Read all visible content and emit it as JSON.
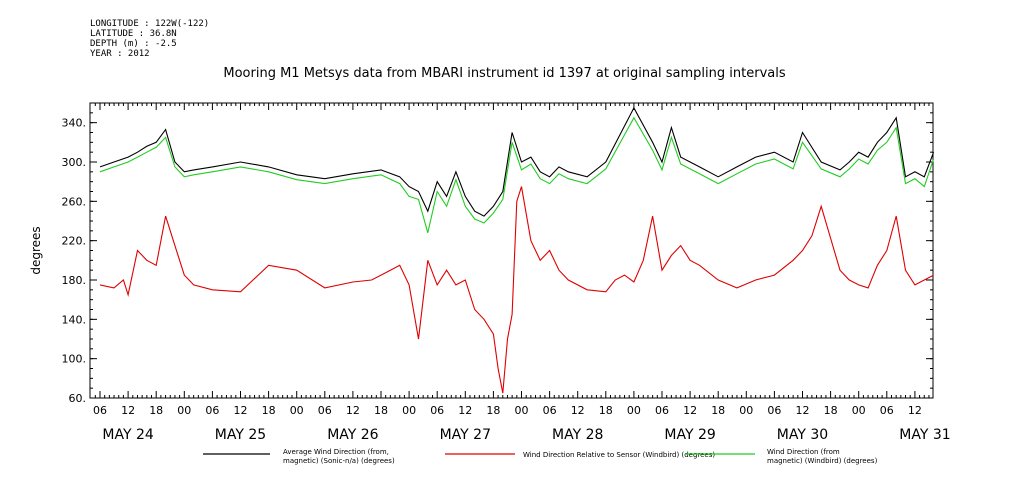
{
  "metadata": {
    "longitude": "LONGITUDE : 122W(-122)",
    "latitude": "LATITUDE : 36.8N",
    "depth": "DEPTH (m) : -2.5",
    "year": "YEAR : 2012"
  },
  "chart_data": {
    "type": "line",
    "title": "Mooring M1 Metsys data from MBARI instrument id 1397 at original sampling intervals",
    "ylabel": "degrees",
    "xlabel": "",
    "ylim": [
      60,
      360
    ],
    "xlim_hours": [
      0,
      178
    ],
    "y_ticks": [
      "60.",
      "100.",
      "140.",
      "180.",
      "220.",
      "260.",
      "300.",
      "340."
    ],
    "hour_tick_labels": [
      "06",
      "12",
      "18",
      "00"
    ],
    "day_labels": [
      "MAY 24",
      "MAY 25",
      "MAY 26",
      "MAY 27",
      "MAY 28",
      "MAY 29",
      "MAY 30",
      "MAY 31"
    ],
    "grid": false,
    "legend_position": "bottom",
    "series": [
      {
        "name": "Average Wind Direction (from, magnetic) (Sonic-n/a) (degrees)",
        "color": "#000000",
        "x_hours": [
          0,
          3,
          6,
          8,
          10,
          12,
          14,
          16,
          18,
          20,
          24,
          30,
          36,
          42,
          48,
          54,
          60,
          64,
          66,
          68,
          70,
          72,
          74,
          76,
          78,
          80,
          82,
          84,
          86,
          88,
          90,
          92,
          94,
          96,
          98,
          100,
          104,
          108,
          114,
          118,
          120,
          122,
          124,
          126,
          128,
          132,
          136,
          140,
          144,
          148,
          150,
          154,
          158,
          160,
          162,
          164,
          166,
          168,
          170,
          172,
          174,
          176,
          178
        ],
        "values": [
          295,
          300,
          305,
          310,
          316,
          320,
          333,
          300,
          290,
          292,
          295,
          300,
          295,
          287,
          283,
          288,
          292,
          285,
          275,
          270,
          250,
          280,
          265,
          290,
          265,
          250,
          245,
          255,
          270,
          330,
          300,
          305,
          290,
          285,
          295,
          290,
          285,
          300,
          355,
          320,
          300,
          335,
          305,
          300,
          295,
          285,
          295,
          305,
          310,
          300,
          330,
          300,
          292,
          300,
          310,
          305,
          320,
          330,
          345,
          285,
          290,
          285,
          310
        ]
      },
      {
        "name": "Wind Direction Relative to Sensor (Windbird) (degrees)",
        "color": "#e00000",
        "x_hours": [
          0,
          3,
          5,
          6,
          8,
          10,
          12,
          14,
          16,
          18,
          20,
          24,
          30,
          36,
          42,
          48,
          54,
          58,
          62,
          64,
          66,
          68,
          70,
          72,
          74,
          76,
          78,
          80,
          82,
          84,
          85,
          86,
          87,
          88,
          89,
          90,
          92,
          94,
          96,
          98,
          100,
          104,
          108,
          110,
          112,
          114,
          116,
          118,
          120,
          122,
          124,
          126,
          128,
          132,
          136,
          140,
          144,
          148,
          150,
          152,
          154,
          158,
          160,
          162,
          164,
          166,
          168,
          170,
          172,
          174,
          176,
          178
        ],
        "values": [
          175,
          172,
          180,
          165,
          210,
          200,
          195,
          245,
          215,
          185,
          175,
          170,
          168,
          195,
          190,
          172,
          178,
          180,
          190,
          195,
          175,
          120,
          200,
          175,
          190,
          175,
          180,
          150,
          140,
          125,
          90,
          65,
          120,
          145,
          260,
          275,
          220,
          200,
          210,
          190,
          180,
          170,
          168,
          180,
          185,
          178,
          200,
          245,
          190,
          205,
          215,
          200,
          195,
          180,
          172,
          180,
          185,
          200,
          210,
          225,
          255,
          190,
          180,
          175,
          172,
          195,
          210,
          245,
          190,
          175,
          180,
          185
        ]
      },
      {
        "name": "Wind Direction (from, magnetic) (Windbird) (degrees)",
        "color": "#22cc22",
        "x_hours": [
          0,
          3,
          6,
          8,
          10,
          12,
          14,
          16,
          18,
          20,
          24,
          30,
          36,
          42,
          48,
          54,
          60,
          64,
          66,
          68,
          70,
          72,
          74,
          76,
          78,
          80,
          82,
          84,
          86,
          88,
          90,
          92,
          94,
          96,
          98,
          100,
          104,
          108,
          114,
          118,
          120,
          122,
          124,
          126,
          128,
          132,
          136,
          140,
          144,
          148,
          150,
          154,
          158,
          160,
          162,
          164,
          166,
          168,
          170,
          172,
          174,
          176,
          178
        ],
        "values": [
          290,
          295,
          300,
          305,
          310,
          315,
          325,
          295,
          285,
          287,
          290,
          295,
          290,
          282,
          278,
          283,
          287,
          278,
          265,
          262,
          228,
          270,
          255,
          282,
          255,
          242,
          238,
          248,
          262,
          320,
          292,
          298,
          283,
          278,
          288,
          283,
          278,
          293,
          345,
          312,
          292,
          325,
          298,
          293,
          288,
          278,
          288,
          298,
          303,
          293,
          320,
          293,
          285,
          293,
          303,
          298,
          312,
          320,
          335,
          278,
          283,
          275,
          303
        ]
      }
    ]
  },
  "legend": {
    "black_line1": "Average Wind Direction (from,",
    "black_line2": "magnetic) (Sonic-n/a) (degrees)",
    "red": "Wind Direction Relative to Sensor (Windbird) (degrees)",
    "green_line1": "Wind Direction (from",
    "green_line2": "magnetic) (Windbird) (degrees)"
  }
}
